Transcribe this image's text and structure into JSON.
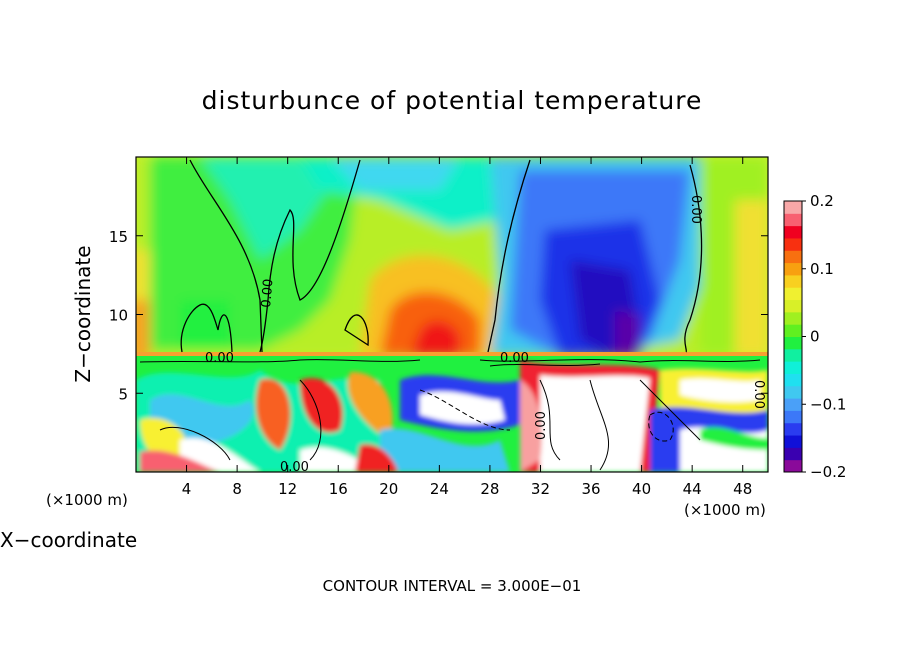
{
  "chart_data": {
    "type": "heatmap",
    "title": "disturbunce of potential temperature",
    "xlabel": "X−coordinate",
    "ylabel": "Z−coordinate",
    "x_unit_left": "(×1000 m)",
    "x_unit_right": "(×1000 m)",
    "xlim": [
      0,
      50
    ],
    "ylim": [
      0,
      20
    ],
    "x_ticks": [
      "4",
      "8",
      "12",
      "16",
      "20",
      "24",
      "28",
      "32",
      "36",
      "40",
      "44",
      "48"
    ],
    "x_tick_values": [
      4,
      8,
      12,
      16,
      20,
      24,
      28,
      32,
      36,
      40,
      44,
      48
    ],
    "y_ticks": [
      "5",
      "10",
      "15"
    ],
    "y_tick_values": [
      5,
      10,
      15
    ],
    "colorbar": {
      "ticks": [
        "0.2",
        "0.1",
        "0",
        "−0.1",
        "−0.2"
      ],
      "tick_values": [
        0.2,
        0.1,
        0,
        -0.1,
        -0.2
      ],
      "range": [
        -0.2,
        0.2
      ],
      "colors": [
        "#8a0a9a",
        "#3a00b0",
        "#1010d8",
        "#2a3cf0",
        "#3c78f8",
        "#4aa0f8",
        "#40c8f0",
        "#20e0f0",
        "#10f0d8",
        "#10f0a0",
        "#20f040",
        "#60f020",
        "#a0f020",
        "#d8f028",
        "#f0f030",
        "#f8d020",
        "#f8a010",
        "#f87010",
        "#f83010",
        "#f00020",
        "#f86070",
        "#f8a8a8"
      ]
    },
    "contour_labels": [
      "0.00",
      "0.00",
      "0.00",
      "0.00",
      "0.00",
      "0.00",
      "0.00",
      "0.00"
    ],
    "contour_interval_text": "CONTOUR INTERVAL = 3.000E−01",
    "upper_field": {
      "description_values": {
        "background_left_x0_to_2": 0.1,
        "left_lobe_x2_to_17": 0.0,
        "warm_core_x20_to_28_z8_to_12": 0.15,
        "cold_core_x32_to_42_z8_to_15": -0.18,
        "right_x45_to_50": 0.07,
        "top_band_x8_to_30": -0.05
      }
    }
  }
}
